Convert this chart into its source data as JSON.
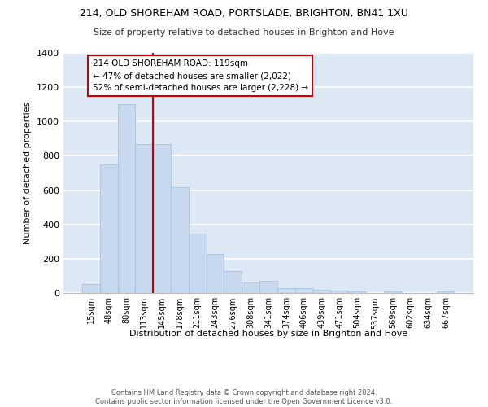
{
  "title1": "214, OLD SHOREHAM ROAD, PORTSLADE, BRIGHTON, BN41 1XU",
  "title2": "Size of property relative to detached houses in Brighton and Hove",
  "xlabel": "Distribution of detached houses by size in Brighton and Hove",
  "ylabel": "Number of detached properties",
  "footnote": "Contains HM Land Registry data © Crown copyright and database right 2024.\nContains public sector information licensed under the Open Government Licence v3.0.",
  "bar_color": "#c8d8ee",
  "bar_edge_color": "#a0bcd8",
  "bg_color": "#dde8f5",
  "grid_color": "#ffffff",
  "categories": [
    "15sqm",
    "48sqm",
    "80sqm",
    "113sqm",
    "145sqm",
    "178sqm",
    "211sqm",
    "243sqm",
    "276sqm",
    "308sqm",
    "341sqm",
    "374sqm",
    "406sqm",
    "439sqm",
    "471sqm",
    "504sqm",
    "537sqm",
    "569sqm",
    "602sqm",
    "634sqm",
    "667sqm"
  ],
  "values": [
    52,
    750,
    1100,
    870,
    870,
    615,
    345,
    228,
    130,
    63,
    70,
    28,
    28,
    18,
    15,
    10,
    0,
    10,
    0,
    0,
    10
  ],
  "ylim": [
    0,
    1400
  ],
  "yticks": [
    0,
    200,
    400,
    600,
    800,
    1000,
    1200,
    1400
  ],
  "property_label": "214 OLD SHOREHAM ROAD: 119sqm",
  "annotation_line1": "← 47% of detached houses are smaller (2,022)",
  "annotation_line2": "52% of semi-detached houses are larger (2,228) →",
  "vline_x_index": 3.5,
  "box_edge_color": "#cc0000",
  "vline_color": "#cc0000"
}
